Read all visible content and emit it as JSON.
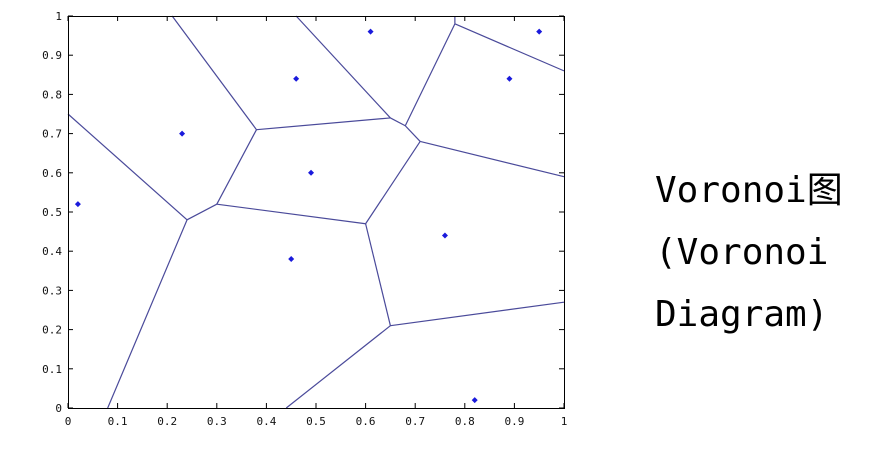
{
  "caption": {
    "line1": "Voronoi图",
    "line2": "(Voronoi",
    "line3": "Diagram)"
  },
  "chart_data": {
    "type": "scatter",
    "title": "",
    "xlabel": "",
    "ylabel": "",
    "xlim": [
      0,
      1
    ],
    "ylim": [
      0,
      1
    ],
    "grid": false,
    "x_ticks": [
      "0",
      "0.1",
      "0.2",
      "0.3",
      "0.4",
      "0.5",
      "0.6",
      "0.7",
      "0.8",
      "0.9",
      "1"
    ],
    "y_ticks": [
      "0",
      "0.1",
      "0.2",
      "0.3",
      "0.4",
      "0.5",
      "0.6",
      "0.7",
      "0.8",
      "0.9",
      "1"
    ],
    "point_color": "#1a1adc",
    "edge_color": "#4a4a9a",
    "points": [
      {
        "x": 0.02,
        "y": 0.52
      },
      {
        "x": 0.23,
        "y": 0.7
      },
      {
        "x": 0.46,
        "y": 0.84
      },
      {
        "x": 0.61,
        "y": 0.96
      },
      {
        "x": 0.89,
        "y": 0.84
      },
      {
        "x": 0.95,
        "y": 0.96
      },
      {
        "x": 0.49,
        "y": 0.6
      },
      {
        "x": 0.45,
        "y": 0.38
      },
      {
        "x": 0.76,
        "y": 0.44
      },
      {
        "x": 0.82,
        "y": 0.02
      }
    ],
    "edges": [
      [
        [
          0.0,
          0.75
        ],
        [
          0.24,
          0.48
        ]
      ],
      [
        [
          0.24,
          0.48
        ],
        [
          0.3,
          0.52
        ]
      ],
      [
        [
          0.24,
          0.48
        ],
        [
          0.08,
          0.0
        ]
      ],
      [
        [
          0.3,
          0.52
        ],
        [
          0.38,
          0.71
        ]
      ],
      [
        [
          0.3,
          0.52
        ],
        [
          0.6,
          0.47
        ]
      ],
      [
        [
          0.38,
          0.71
        ],
        [
          0.21,
          1.0
        ]
      ],
      [
        [
          0.38,
          0.71
        ],
        [
          0.65,
          0.74
        ]
      ],
      [
        [
          0.65,
          0.74
        ],
        [
          0.46,
          1.0
        ]
      ],
      [
        [
          0.65,
          0.74
        ],
        [
          0.68,
          0.72
        ]
      ],
      [
        [
          0.68,
          0.72
        ],
        [
          0.78,
          0.98
        ]
      ],
      [
        [
          0.68,
          0.72
        ],
        [
          0.71,
          0.68
        ]
      ],
      [
        [
          0.78,
          0.98
        ],
        [
          0.78,
          1.0
        ]
      ],
      [
        [
          0.78,
          0.98
        ],
        [
          1.0,
          0.86
        ]
      ],
      [
        [
          0.71,
          0.68
        ],
        [
          1.0,
          0.59
        ]
      ],
      [
        [
          0.71,
          0.68
        ],
        [
          0.6,
          0.47
        ]
      ],
      [
        [
          0.6,
          0.47
        ],
        [
          0.65,
          0.21
        ]
      ],
      [
        [
          0.65,
          0.21
        ],
        [
          1.0,
          0.27
        ]
      ],
      [
        [
          0.65,
          0.21
        ],
        [
          0.44,
          0.0
        ]
      ]
    ]
  }
}
